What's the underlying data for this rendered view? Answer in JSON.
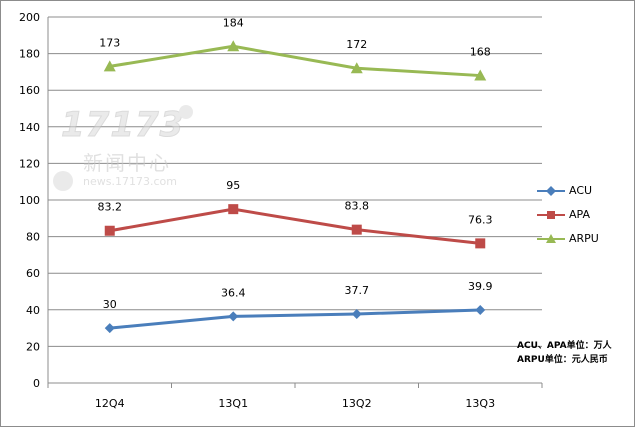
{
  "chart_data": {
    "type": "line",
    "categories": [
      "12Q4",
      "13Q1",
      "13Q2",
      "13Q3"
    ],
    "ylim": [
      0,
      200
    ],
    "yticks": [
      0,
      20,
      40,
      60,
      80,
      100,
      120,
      140,
      160,
      180,
      200
    ],
    "grid": true,
    "legend_position": "right",
    "series": [
      {
        "name": "ACU",
        "values": [
          30,
          36.4,
          37.7,
          39.9
        ],
        "labels": [
          "30",
          "36.4",
          "37.7",
          "39.9"
        ],
        "color": "#4a7ebb",
        "marker": "diamond"
      },
      {
        "name": "APA",
        "values": [
          83.2,
          95,
          83.8,
          76.3
        ],
        "labels": [
          "83.2",
          "95",
          "83.8",
          "76.3"
        ],
        "color": "#be4b48",
        "marker": "square"
      },
      {
        "name": "ARPU",
        "values": [
          173,
          184,
          172,
          168
        ],
        "labels": [
          "173",
          "184",
          "172",
          "168"
        ],
        "color": "#98b954",
        "marker": "triangle"
      }
    ],
    "notes": [
      "ACU、APA单位：万人",
      "ARPU单位：元人民币"
    ]
  },
  "watermark": {
    "logo": "17173",
    "cn": "新闻中心",
    "url": "news.17173.com"
  }
}
